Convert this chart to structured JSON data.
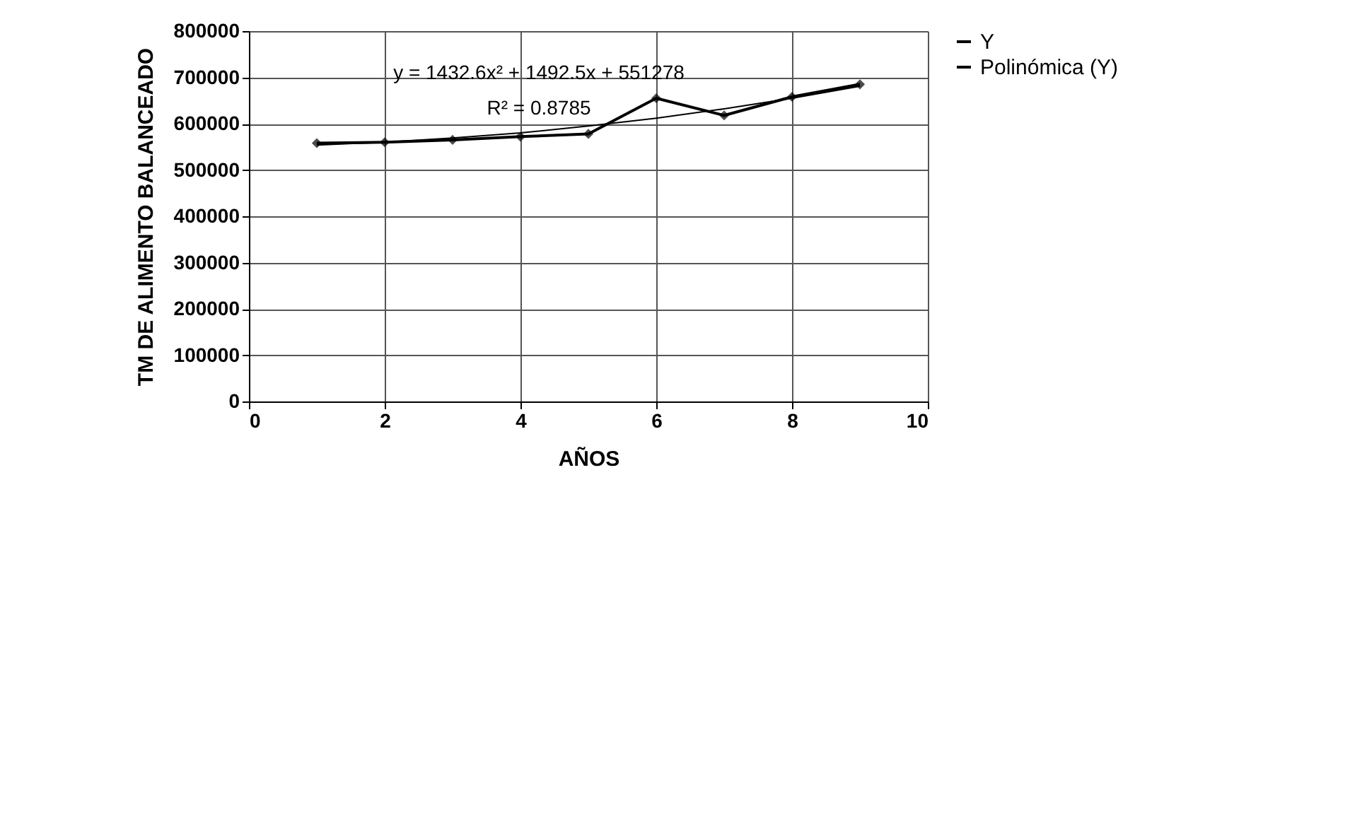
{
  "chart_data": {
    "type": "line",
    "xlabel": "AÑOS",
    "ylabel": "TM DE  ALIMENTO BALANCEADO",
    "x": [
      1,
      2,
      3,
      4,
      5,
      6,
      7,
      8,
      9
    ],
    "series": [
      {
        "name": "Y",
        "color": "#000000",
        "marker": "diamond",
        "values": [
          558000,
          560000,
          565000,
          572000,
          578000,
          655000,
          618000,
          658000,
          685000
        ]
      },
      {
        "name": "Polinómica (Y)",
        "type": "line",
        "color": "#000000",
        "marker": "none",
        "x": [
          1,
          2,
          3,
          4,
          5,
          6,
          7,
          8,
          9
        ],
        "values": [
          554000,
          560000,
          569000,
          580000,
          595000,
          612000,
          632000,
          655000,
          681000
        ]
      }
    ],
    "xlim": [
      0,
      10
    ],
    "xticks": [
      0,
      2,
      4,
      6,
      8,
      10
    ],
    "ylim": [
      0,
      800000
    ],
    "yticks": [
      0,
      100000,
      200000,
      300000,
      400000,
      500000,
      600000,
      700000,
      800000
    ],
    "grid": true,
    "legend": "right",
    "annotations": [
      "y = 1432.6x² + 1492.5x + 551278",
      "R² = 0.8785"
    ]
  }
}
